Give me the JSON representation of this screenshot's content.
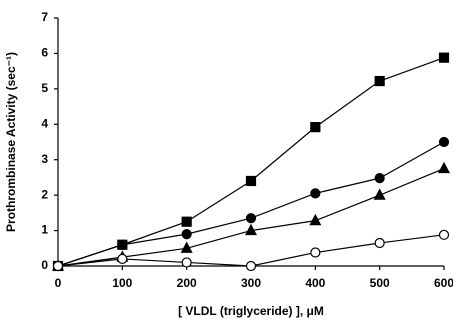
{
  "chart_data": {
    "type": "line",
    "xlabel": "[ VLDL (triglyceride) ], μM",
    "ylabel": "Prothrombinase Activity (sec⁻¹)",
    "x": [
      0,
      100,
      200,
      300,
      400,
      500,
      600
    ],
    "series": [
      {
        "color": "#000000",
        "marker": "square",
        "filled": true,
        "values": [
          0,
          0.6,
          1.25,
          2.4,
          3.92,
          5.22,
          5.88
        ]
      },
      {
        "color": "#000000",
        "marker": "circle",
        "filled": true,
        "values": [
          0,
          0.6,
          0.9,
          1.35,
          2.05,
          2.48,
          3.5
        ]
      },
      {
        "color": "#000000",
        "marker": "triangle",
        "filled": true,
        "values": [
          0,
          0.25,
          0.5,
          1.0,
          1.28,
          2.0,
          2.75
        ]
      },
      {
        "color": "#000000",
        "marker": "circle",
        "filled": false,
        "values": [
          0,
          0.2,
          0.1,
          0,
          0.38,
          0.65,
          0.88
        ]
      }
    ],
    "xlim": [
      0,
      600
    ],
    "xticks": [
      0,
      100,
      200,
      300,
      400,
      500,
      600
    ],
    "ylim": [
      0,
      7
    ],
    "yticks": [
      0,
      1,
      2,
      3,
      4,
      5,
      6,
      7
    ],
    "grid": false
  }
}
